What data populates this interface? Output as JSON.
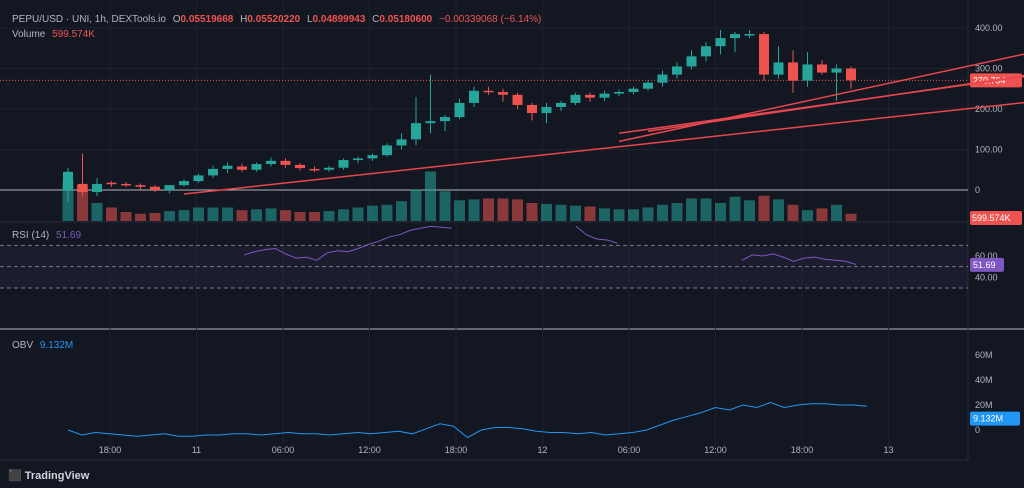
{
  "header": {
    "symbol": "PEPU/USD · UNI, 1h, DEXTools.io",
    "open": "0.05519668",
    "high": "0.05520220",
    "low": "0.04899943",
    "close": "0.05180600",
    "change": "−0.00339068 (−6.14%)",
    "volume_label": "Volume",
    "volume_value": "599.574K"
  },
  "rsi": {
    "label": "RSI (14)",
    "value_text": "51.69",
    "value": 51.69,
    "ticks": [
      "60.00",
      "40.00"
    ]
  },
  "obv": {
    "label": "OBV",
    "value_text": "9.132M",
    "ticks": [
      "60M",
      "40M",
      "20M",
      "0"
    ]
  },
  "footer": {
    "brand": "TradingView"
  },
  "colors": {
    "up": "#26a69a",
    "down": "#ef5350",
    "rsi": "#7e57c2",
    "obv": "#2196f3",
    "trend": "#e8474d"
  },
  "chart_data": {
    "type": "candlestick",
    "price_axis_ticks": [
      "400.00",
      "300.00",
      "200.00",
      "100.00",
      "0"
    ],
    "last_price_label": "270.704",
    "volume_label": "599.574K",
    "time_labels": [
      "18:00",
      "11",
      "06:00",
      "12:00",
      "18:00",
      "12",
      "06:00",
      "12:00",
      "18:00",
      "13"
    ],
    "candles": [
      {
        "o": 0,
        "h": 55,
        "l": -30,
        "c": 45
      },
      {
        "o": 15,
        "h": 90,
        "l": -15,
        "c": -5
      },
      {
        "o": -5,
        "h": 30,
        "l": -15,
        "c": 15
      },
      {
        "o": 18,
        "h": 22,
        "l": 8,
        "c": 15
      },
      {
        "o": 15,
        "h": 20,
        "l": 8,
        "c": 12
      },
      {
        "o": 12,
        "h": 16,
        "l": 0,
        "c": 8
      },
      {
        "o": 8,
        "h": 12,
        "l": -5,
        "c": 0
      },
      {
        "o": 0,
        "h": 10,
        "l": -8,
        "c": 12
      },
      {
        "o": 12,
        "h": 26,
        "l": 8,
        "c": 22
      },
      {
        "o": 22,
        "h": 40,
        "l": 18,
        "c": 36
      },
      {
        "o": 36,
        "h": 60,
        "l": 30,
        "c": 52
      },
      {
        "o": 52,
        "h": 68,
        "l": 42,
        "c": 60
      },
      {
        "o": 58,
        "h": 65,
        "l": 45,
        "c": 50
      },
      {
        "o": 50,
        "h": 68,
        "l": 45,
        "c": 64
      },
      {
        "o": 64,
        "h": 80,
        "l": 58,
        "c": 72
      },
      {
        "o": 72,
        "h": 78,
        "l": 55,
        "c": 62
      },
      {
        "o": 62,
        "h": 66,
        "l": 48,
        "c": 54
      },
      {
        "o": 52,
        "h": 58,
        "l": 44,
        "c": 50
      },
      {
        "o": 50,
        "h": 60,
        "l": 45,
        "c": 55
      },
      {
        "o": 55,
        "h": 78,
        "l": 50,
        "c": 74
      },
      {
        "o": 74,
        "h": 82,
        "l": 66,
        "c": 78
      },
      {
        "o": 78,
        "h": 90,
        "l": 72,
        "c": 86
      },
      {
        "o": 86,
        "h": 115,
        "l": 82,
        "c": 110
      },
      {
        "o": 110,
        "h": 140,
        "l": 100,
        "c": 125
      },
      {
        "o": 125,
        "h": 230,
        "l": 110,
        "c": 165
      },
      {
        "o": 165,
        "h": 285,
        "l": 140,
        "c": 170
      },
      {
        "o": 170,
        "h": 185,
        "l": 145,
        "c": 180
      },
      {
        "o": 180,
        "h": 225,
        "l": 175,
        "c": 215
      },
      {
        "o": 215,
        "h": 255,
        "l": 205,
        "c": 245
      },
      {
        "o": 245,
        "h": 255,
        "l": 235,
        "c": 242
      },
      {
        "o": 242,
        "h": 250,
        "l": 218,
        "c": 235
      },
      {
        "o": 235,
        "h": 240,
        "l": 200,
        "c": 210
      },
      {
        "o": 210,
        "h": 215,
        "l": 172,
        "c": 190
      },
      {
        "o": 190,
        "h": 215,
        "l": 165,
        "c": 205
      },
      {
        "o": 205,
        "h": 220,
        "l": 195,
        "c": 215
      },
      {
        "o": 215,
        "h": 240,
        "l": 210,
        "c": 235
      },
      {
        "o": 235,
        "h": 240,
        "l": 218,
        "c": 228
      },
      {
        "o": 228,
        "h": 245,
        "l": 220,
        "c": 238
      },
      {
        "o": 238,
        "h": 248,
        "l": 232,
        "c": 242
      },
      {
        "o": 242,
        "h": 255,
        "l": 236,
        "c": 250
      },
      {
        "o": 250,
        "h": 270,
        "l": 245,
        "c": 265
      },
      {
        "o": 265,
        "h": 295,
        "l": 255,
        "c": 285
      },
      {
        "o": 285,
        "h": 315,
        "l": 275,
        "c": 305
      },
      {
        "o": 305,
        "h": 345,
        "l": 298,
        "c": 330
      },
      {
        "o": 330,
        "h": 365,
        "l": 318,
        "c": 355
      },
      {
        "o": 355,
        "h": 395,
        "l": 335,
        "c": 375
      },
      {
        "o": 375,
        "h": 390,
        "l": 340,
        "c": 385
      },
      {
        "o": 385,
        "h": 395,
        "l": 375,
        "c": 385
      },
      {
        "o": 385,
        "h": 390,
        "l": 270,
        "c": 285
      },
      {
        "o": 285,
        "h": 355,
        "l": 275,
        "c": 315
      },
      {
        "o": 315,
        "h": 345,
        "l": 240,
        "c": 270
      },
      {
        "o": 270,
        "h": 340,
        "l": 255,
        "c": 310
      },
      {
        "o": 310,
        "h": 320,
        "l": 285,
        "c": 290
      },
      {
        "o": 290,
        "h": 310,
        "l": 220,
        "c": 300
      },
      {
        "o": 300,
        "h": 305,
        "l": 250,
        "c": 271
      }
    ],
    "volume": [
      45,
      40,
      20,
      15,
      10,
      8,
      9,
      11,
      12,
      15,
      15,
      15,
      12,
      13,
      14,
      12,
      10,
      10,
      11,
      13,
      15,
      17,
      18,
      22,
      35,
      55,
      33,
      23,
      24,
      25,
      25,
      24,
      20,
      19,
      18,
      17,
      16,
      14,
      13,
      13,
      15,
      18,
      20,
      25,
      25,
      20,
      27,
      23,
      28,
      24,
      18,
      12,
      14,
      18,
      8
    ],
    "rsi_series": [
      null,
      null,
      null,
      null,
      null,
      null,
      null,
      null,
      null,
      null,
      null,
      null,
      null,
      null,
      null,
      null,
      null,
      61,
      64,
      66,
      67,
      62,
      58,
      59,
      56,
      63,
      65,
      64,
      67,
      71,
      74,
      78,
      80,
      84,
      86,
      88,
      87,
      86,
      null,
      null,
      null,
      null,
      null,
      null,
      null,
      null,
      null,
      null,
      null,
      88,
      80,
      76,
      75,
      72,
      null,
      null,
      null,
      null,
      null,
      null,
      null,
      null,
      null,
      null,
      null,
      56,
      61,
      60,
      62,
      59,
      55,
      58,
      59,
      57,
      56,
      55,
      52
    ],
    "obv_series": [
      0,
      -4,
      -2,
      -3,
      -4,
      -5,
      -4,
      -3,
      -5,
      -5,
      -4,
      -4,
      -3,
      -3,
      -4,
      -3,
      -2,
      -3,
      -3,
      -4,
      -3,
      -2,
      -3,
      -2,
      -1,
      -3,
      1,
      5,
      3,
      -6,
      0,
      2,
      2,
      1,
      -1,
      -2,
      -2,
      -3,
      -2,
      -4,
      -3,
      -2,
      0,
      4,
      8,
      11,
      14,
      18,
      16,
      20,
      18,
      22,
      18,
      20,
      21,
      21,
      20,
      20,
      19
    ],
    "rsi_bands": [
      70,
      50,
      30
    ],
    "trendlines": [
      {
        "from": [
          8,
          -10
        ],
        "to": [
          67,
          220
        ]
      },
      {
        "from": [
          38,
          120
        ],
        "to": [
          73,
          390
        ]
      },
      {
        "from": [
          38,
          140
        ],
        "to": [
          74,
          320
        ]
      },
      {
        "from": [
          40,
          145
        ],
        "to": [
          74,
          325
        ]
      }
    ]
  }
}
